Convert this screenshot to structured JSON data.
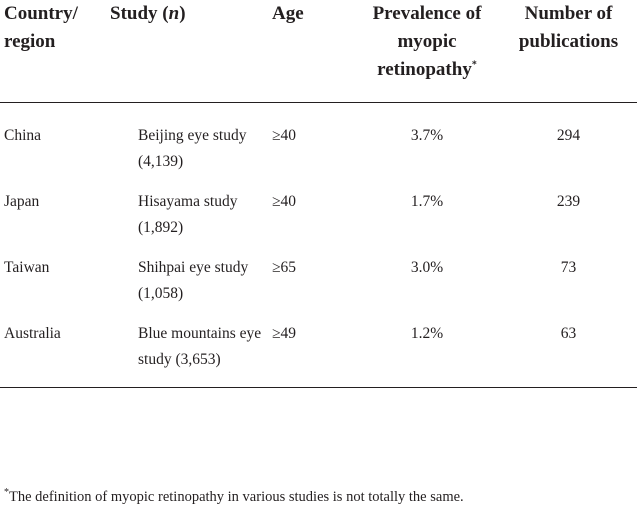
{
  "table": {
    "headers": {
      "country": "Country/ region",
      "study_prefix": "Study (",
      "study_n": "n",
      "study_suffix": ")",
      "age": "Age",
      "prevalence": "Prevalence of myopic retinopathy",
      "prevalence_mark": "*",
      "publications": "Number of publications"
    },
    "rows": [
      {
        "country": "China",
        "study": "Beijing eye study (4,139)",
        "age": "≥40",
        "prevalence": "3.7%",
        "publications": "294"
      },
      {
        "country": "Japan",
        "study": "Hisayama study (1,892)",
        "age": "≥40",
        "prevalence": "1.7%",
        "publications": "239"
      },
      {
        "country": "Taiwan",
        "study": "Shihpai eye study (1,058)",
        "age": "≥65",
        "prevalence": "3.0%",
        "publications": "73"
      },
      {
        "country": "Australia",
        "study": "Blue mountains eye study (3,653)",
        "age": "≥49",
        "prevalence": "1.2%",
        "publications": "63"
      }
    ]
  },
  "footnote": {
    "mark": "*",
    "text": "The definition of myopic retinopathy in various studies is not totally the same."
  }
}
